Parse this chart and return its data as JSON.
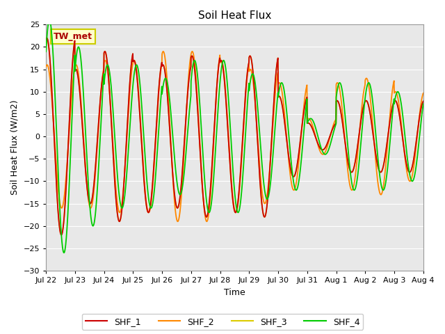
{
  "title": "Soil Heat Flux",
  "ylabel": "Soil Heat Flux (W/m2)",
  "xlabel": "Time",
  "ylim": [
    -30,
    25
  ],
  "plot_facecolor": "#e8e8e8",
  "fig_facecolor": "#ffffff",
  "line_colors": {
    "SHF_1": "#cc0000",
    "SHF_2": "#ff8800",
    "SHF_3": "#ddcc00",
    "SHF_4": "#00cc00"
  },
  "xtick_labels": [
    "Jul 22",
    "Jul 23",
    "Jul 24",
    "Jul 25",
    "Jul 26",
    "Jul 27",
    "Jul 28",
    "Jul 29",
    "Jul 30",
    "Jul 31",
    "Aug 1",
    "Aug 2",
    "Aug 3",
    "Aug 4"
  ],
  "annotation_text": "TW_met",
  "annotation_color": "#aa0000",
  "annotation_bg": "#ffffcc",
  "annotation_border": "#cccc00",
  "yticks": [
    -30,
    -25,
    -20,
    -15,
    -10,
    -5,
    0,
    5,
    10,
    15,
    20,
    25
  ],
  "grid_color": "#ffffff",
  "legend_entries": [
    "SHF_1",
    "SHF_2",
    "SHF_3",
    "SHF_4"
  ]
}
